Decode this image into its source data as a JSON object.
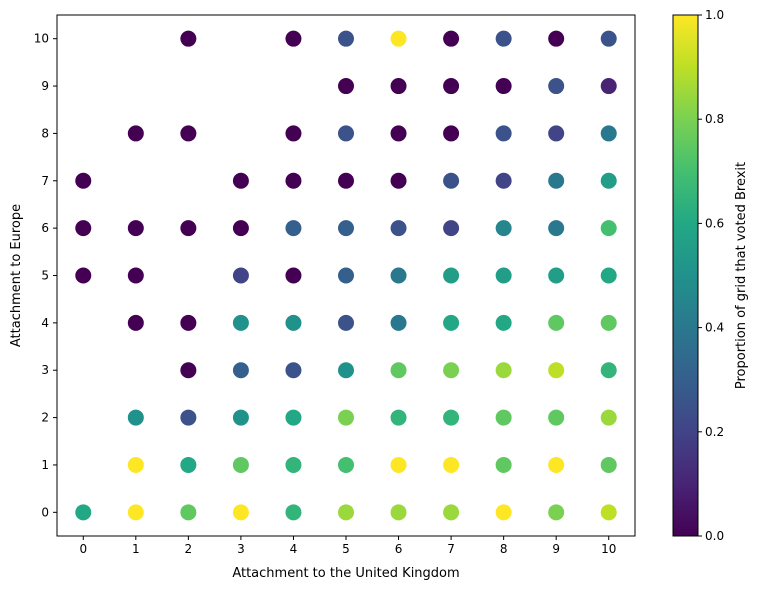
{
  "chart_data": {
    "type": "scatter",
    "xlabel": "Attachment to the United Kingdom",
    "ylabel": "Attachment to Europe",
    "xlim": [
      -0.5,
      10.5
    ],
    "ylim": [
      -0.5,
      10.5
    ],
    "xticks": [
      0,
      1,
      2,
      3,
      4,
      5,
      6,
      7,
      8,
      9,
      10
    ],
    "yticks": [
      0,
      1,
      2,
      3,
      4,
      5,
      6,
      7,
      8,
      9,
      10
    ],
    "grid": false,
    "colormap": "viridis",
    "colorbar": {
      "label": "Proportion of grid that voted Brexit",
      "range": [
        0.0,
        1.0
      ],
      "ticks": [
        0.0,
        0.2,
        0.4,
        0.6,
        0.8,
        1.0
      ],
      "tick_labels": [
        "0.0",
        "0.2",
        "0.4",
        "0.6",
        "0.8",
        "1.0"
      ]
    },
    "points": [
      {
        "x": 2,
        "y": 10,
        "v": 0.0
      },
      {
        "x": 4,
        "y": 10,
        "v": 0.0
      },
      {
        "x": 5,
        "y": 10,
        "v": 0.25
      },
      {
        "x": 6,
        "y": 10,
        "v": 1.0
      },
      {
        "x": 7,
        "y": 10,
        "v": 0.0
      },
      {
        "x": 8,
        "y": 10,
        "v": 0.25
      },
      {
        "x": 9,
        "y": 10,
        "v": 0.0
      },
      {
        "x": 10,
        "y": 10,
        "v": 0.25
      },
      {
        "x": 5,
        "y": 9,
        "v": 0.0
      },
      {
        "x": 6,
        "y": 9,
        "v": 0.0
      },
      {
        "x": 7,
        "y": 9,
        "v": 0.0
      },
      {
        "x": 8,
        "y": 9,
        "v": 0.0
      },
      {
        "x": 9,
        "y": 9,
        "v": 0.25
      },
      {
        "x": 10,
        "y": 9,
        "v": 0.1
      },
      {
        "x": 1,
        "y": 8,
        "v": 0.0
      },
      {
        "x": 2,
        "y": 8,
        "v": 0.0
      },
      {
        "x": 4,
        "y": 8,
        "v": 0.0
      },
      {
        "x": 5,
        "y": 8,
        "v": 0.25
      },
      {
        "x": 6,
        "y": 8,
        "v": 0.0
      },
      {
        "x": 7,
        "y": 8,
        "v": 0.0
      },
      {
        "x": 8,
        "y": 8,
        "v": 0.25
      },
      {
        "x": 9,
        "y": 8,
        "v": 0.2
      },
      {
        "x": 10,
        "y": 8,
        "v": 0.4
      },
      {
        "x": 0,
        "y": 7,
        "v": 0.0
      },
      {
        "x": 3,
        "y": 7,
        "v": 0.0
      },
      {
        "x": 4,
        "y": 7,
        "v": 0.0
      },
      {
        "x": 5,
        "y": 7,
        "v": 0.0
      },
      {
        "x": 6,
        "y": 7,
        "v": 0.0
      },
      {
        "x": 7,
        "y": 7,
        "v": 0.25
      },
      {
        "x": 8,
        "y": 7,
        "v": 0.2
      },
      {
        "x": 9,
        "y": 7,
        "v": 0.4
      },
      {
        "x": 10,
        "y": 7,
        "v": 0.55
      },
      {
        "x": 0,
        "y": 6,
        "v": 0.0
      },
      {
        "x": 1,
        "y": 6,
        "v": 0.0
      },
      {
        "x": 2,
        "y": 6,
        "v": 0.0
      },
      {
        "x": 3,
        "y": 6,
        "v": 0.0
      },
      {
        "x": 4,
        "y": 6,
        "v": 0.3
      },
      {
        "x": 5,
        "y": 6,
        "v": 0.3
      },
      {
        "x": 6,
        "y": 6,
        "v": 0.25
      },
      {
        "x": 7,
        "y": 6,
        "v": 0.2
      },
      {
        "x": 8,
        "y": 6,
        "v": 0.45
      },
      {
        "x": 9,
        "y": 6,
        "v": 0.4
      },
      {
        "x": 10,
        "y": 6,
        "v": 0.7
      },
      {
        "x": 0,
        "y": 5,
        "v": 0.0
      },
      {
        "x": 1,
        "y": 5,
        "v": 0.0
      },
      {
        "x": 3,
        "y": 5,
        "v": 0.2
      },
      {
        "x": 4,
        "y": 5,
        "v": 0.0
      },
      {
        "x": 5,
        "y": 5,
        "v": 0.3
      },
      {
        "x": 6,
        "y": 5,
        "v": 0.4
      },
      {
        "x": 7,
        "y": 5,
        "v": 0.55
      },
      {
        "x": 8,
        "y": 5,
        "v": 0.55
      },
      {
        "x": 9,
        "y": 5,
        "v": 0.55
      },
      {
        "x": 10,
        "y": 5,
        "v": 0.6
      },
      {
        "x": 1,
        "y": 4,
        "v": 0.0
      },
      {
        "x": 2,
        "y": 4,
        "v": 0.0
      },
      {
        "x": 3,
        "y": 4,
        "v": 0.5
      },
      {
        "x": 4,
        "y": 4,
        "v": 0.5
      },
      {
        "x": 5,
        "y": 4,
        "v": 0.25
      },
      {
        "x": 6,
        "y": 4,
        "v": 0.4
      },
      {
        "x": 7,
        "y": 4,
        "v": 0.6
      },
      {
        "x": 8,
        "y": 4,
        "v": 0.6
      },
      {
        "x": 9,
        "y": 4,
        "v": 0.75
      },
      {
        "x": 10,
        "y": 4,
        "v": 0.75
      },
      {
        "x": 2,
        "y": 3,
        "v": 0.0
      },
      {
        "x": 3,
        "y": 3,
        "v": 0.3
      },
      {
        "x": 4,
        "y": 3,
        "v": 0.25
      },
      {
        "x": 5,
        "y": 3,
        "v": 0.5
      },
      {
        "x": 6,
        "y": 3,
        "v": 0.75
      },
      {
        "x": 7,
        "y": 3,
        "v": 0.8
      },
      {
        "x": 8,
        "y": 3,
        "v": 0.85
      },
      {
        "x": 9,
        "y": 3,
        "v": 0.9
      },
      {
        "x": 10,
        "y": 3,
        "v": 0.65
      },
      {
        "x": 1,
        "y": 2,
        "v": 0.5
      },
      {
        "x": 2,
        "y": 2,
        "v": 0.25
      },
      {
        "x": 3,
        "y": 2,
        "v": 0.5
      },
      {
        "x": 4,
        "y": 2,
        "v": 0.6
      },
      {
        "x": 5,
        "y": 2,
        "v": 0.8
      },
      {
        "x": 6,
        "y": 2,
        "v": 0.65
      },
      {
        "x": 7,
        "y": 2,
        "v": 0.65
      },
      {
        "x": 8,
        "y": 2,
        "v": 0.75
      },
      {
        "x": 9,
        "y": 2,
        "v": 0.75
      },
      {
        "x": 10,
        "y": 2,
        "v": 0.85
      },
      {
        "x": 1,
        "y": 1,
        "v": 1.0
      },
      {
        "x": 2,
        "y": 1,
        "v": 0.6
      },
      {
        "x": 3,
        "y": 1,
        "v": 0.75
      },
      {
        "x": 4,
        "y": 1,
        "v": 0.65
      },
      {
        "x": 5,
        "y": 1,
        "v": 0.7
      },
      {
        "x": 6,
        "y": 1,
        "v": 1.0
      },
      {
        "x": 7,
        "y": 1,
        "v": 1.0
      },
      {
        "x": 8,
        "y": 1,
        "v": 0.75
      },
      {
        "x": 9,
        "y": 1,
        "v": 1.0
      },
      {
        "x": 10,
        "y": 1,
        "v": 0.75
      },
      {
        "x": 0,
        "y": 0,
        "v": 0.6
      },
      {
        "x": 1,
        "y": 0,
        "v": 1.0
      },
      {
        "x": 2,
        "y": 0,
        "v": 0.75
      },
      {
        "x": 3,
        "y": 0,
        "v": 1.0
      },
      {
        "x": 4,
        "y": 0,
        "v": 0.65
      },
      {
        "x": 5,
        "y": 0,
        "v": 0.85
      },
      {
        "x": 6,
        "y": 0,
        "v": 0.85
      },
      {
        "x": 7,
        "y": 0,
        "v": 0.85
      },
      {
        "x": 8,
        "y": 0,
        "v": 1.0
      },
      {
        "x": 9,
        "y": 0,
        "v": 0.8
      },
      {
        "x": 10,
        "y": 0,
        "v": 0.9
      }
    ]
  }
}
